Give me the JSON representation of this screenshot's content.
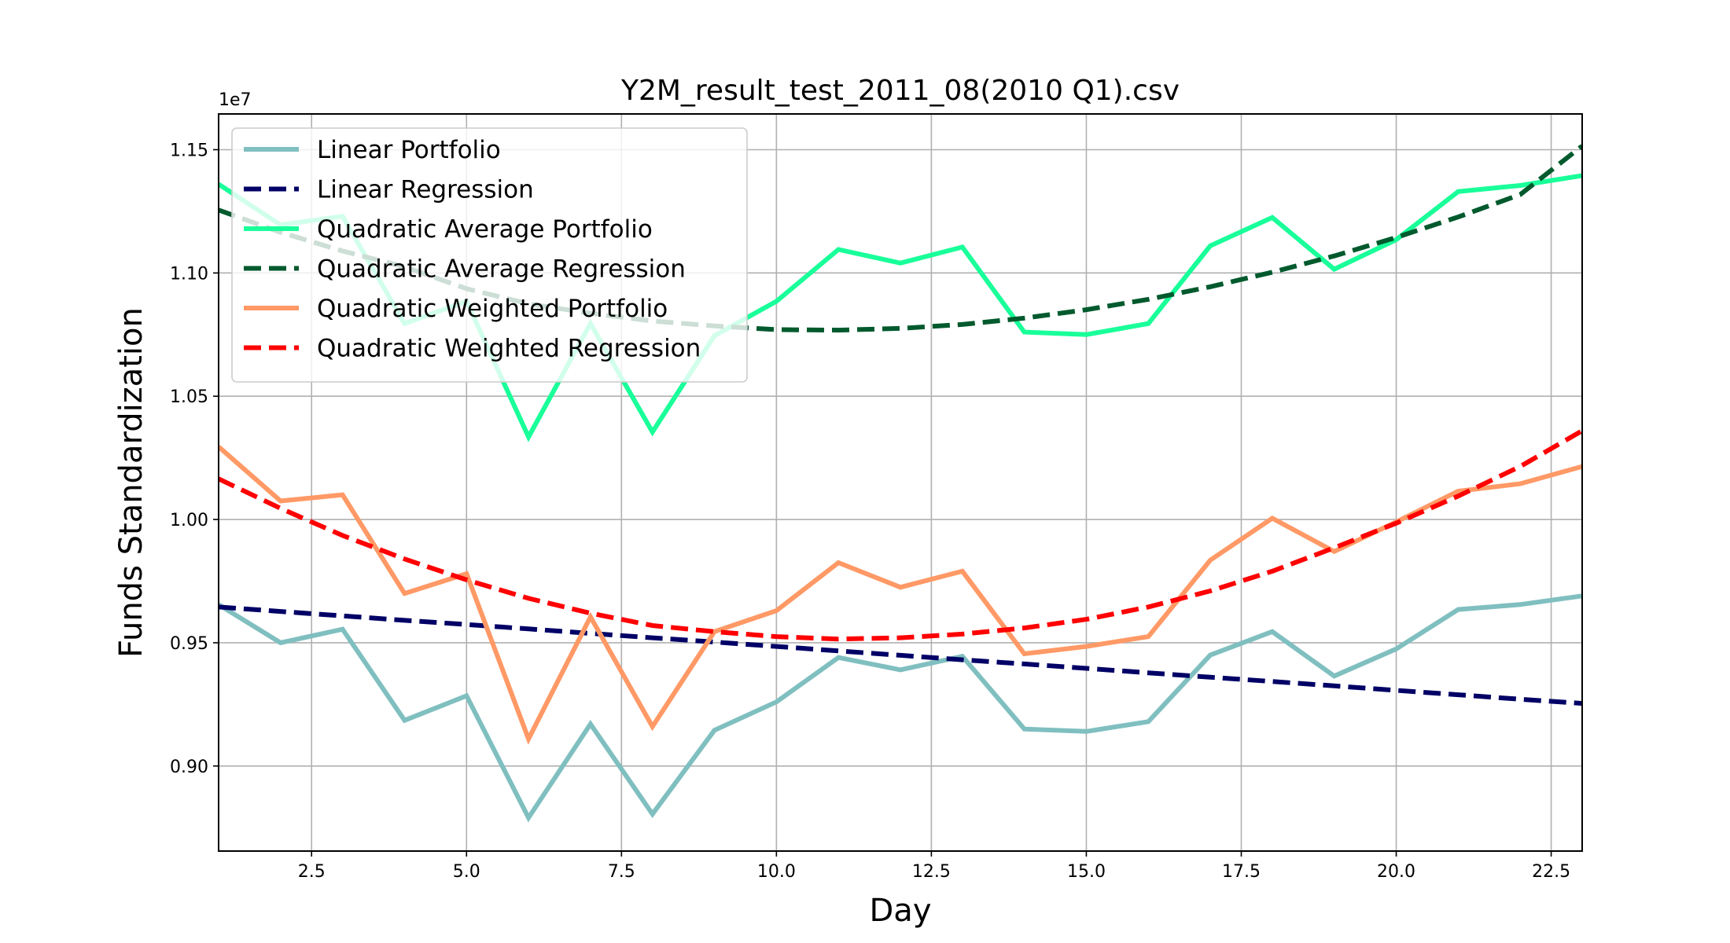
{
  "chart_data": {
    "type": "line",
    "title": "Y2M_result_test_2011_08(2010 Q1).csv",
    "xlabel": "Day",
    "ylabel": "Funds Standardization",
    "y_offset_label": "1e7",
    "xlim": [
      1,
      23
    ],
    "ylim": [
      0.8655,
      1.1645
    ],
    "x_ticks": [
      2.5,
      5.0,
      7.5,
      10.0,
      12.5,
      15.0,
      17.5,
      20.0,
      22.5
    ],
    "x_tick_labels": [
      "2.5",
      "5.0",
      "7.5",
      "10.0",
      "12.5",
      "15.0",
      "17.5",
      "20.0",
      "22.5"
    ],
    "y_ticks": [
      0.9,
      0.95,
      1.0,
      1.05,
      1.1,
      1.15
    ],
    "y_tick_labels": [
      "0.90",
      "0.95",
      "1.00",
      "1.05",
      "1.10",
      "1.15"
    ],
    "grid": true,
    "legend_position": "top-left",
    "x": [
      1,
      2,
      3,
      4,
      5,
      6,
      7,
      8,
      9,
      10,
      11,
      12,
      13,
      14,
      15,
      16,
      17,
      18,
      19,
      20,
      21,
      22,
      23
    ],
    "series": [
      {
        "name": "Linear Portfolio",
        "color": "#80bfc0",
        "style": "solid",
        "values": [
          0.9655,
          0.95,
          0.9555,
          0.9185,
          0.9285,
          0.879,
          0.917,
          0.8805,
          0.9145,
          0.926,
          0.944,
          0.939,
          0.9445,
          0.915,
          0.914,
          0.918,
          0.945,
          0.9545,
          0.9365,
          0.9475,
          0.9635,
          0.9655,
          0.969
        ]
      },
      {
        "name": "Linear Regression",
        "color": "#000066",
        "style": "dashed",
        "values": [
          0.9645,
          0.9627,
          0.9609,
          0.9591,
          0.9574,
          0.9556,
          0.9538,
          0.952,
          0.9503,
          0.9485,
          0.9467,
          0.9449,
          0.9431,
          0.9414,
          0.9396,
          0.9378,
          0.936,
          0.9343,
          0.9325,
          0.9307,
          0.9289,
          0.9271,
          0.9254
        ]
      },
      {
        "name": "Quadratic Average Portfolio",
        "color": "#19ff99",
        "style": "solid",
        "values": [
          1.136,
          1.1195,
          1.123,
          1.0795,
          1.0885,
          1.0335,
          1.0795,
          1.0355,
          1.0745,
          1.0885,
          1.1095,
          1.104,
          1.1105,
          1.076,
          1.075,
          1.0795,
          1.111,
          1.1225,
          1.1015,
          1.1135,
          1.133,
          1.1355,
          1.1395
        ]
      },
      {
        "name": "Quadratic Average Regression",
        "color": "#005a2d",
        "style": "dashed",
        "values": [
          1.1255,
          1.1165,
          1.1089,
          1.1025,
          1.0936,
          1.0875,
          1.0836,
          1.0805,
          1.0785,
          1.077,
          1.0768,
          1.0775,
          1.0791,
          1.0817,
          1.0851,
          1.0893,
          1.0944,
          1.1003,
          1.1069,
          1.1144,
          1.1227,
          1.1318,
          1.1515
        ]
      },
      {
        "name": "Quadratic Weighted Portfolio",
        "color": "#ff9966",
        "style": "solid",
        "values": [
          1.0295,
          1.0075,
          1.01,
          0.97,
          0.978,
          0.911,
          0.9605,
          0.916,
          0.9545,
          0.963,
          0.9825,
          0.9725,
          0.979,
          0.9455,
          0.9485,
          0.9525,
          0.9835,
          1.0005,
          0.987,
          0.999,
          1.0115,
          1.0145,
          1.0215
        ]
      },
      {
        "name": "Quadratic Weighted Regression",
        "color": "#ff0000",
        "style": "dashed",
        "values": [
          1.0165,
          1.0045,
          0.9935,
          0.984,
          0.9755,
          0.968,
          0.962,
          0.957,
          0.9545,
          0.9525,
          0.9515,
          0.952,
          0.9535,
          0.956,
          0.9595,
          0.9645,
          0.971,
          0.979,
          0.9885,
          0.9985,
          1.0095,
          1.0215,
          1.036
        ]
      }
    ]
  }
}
